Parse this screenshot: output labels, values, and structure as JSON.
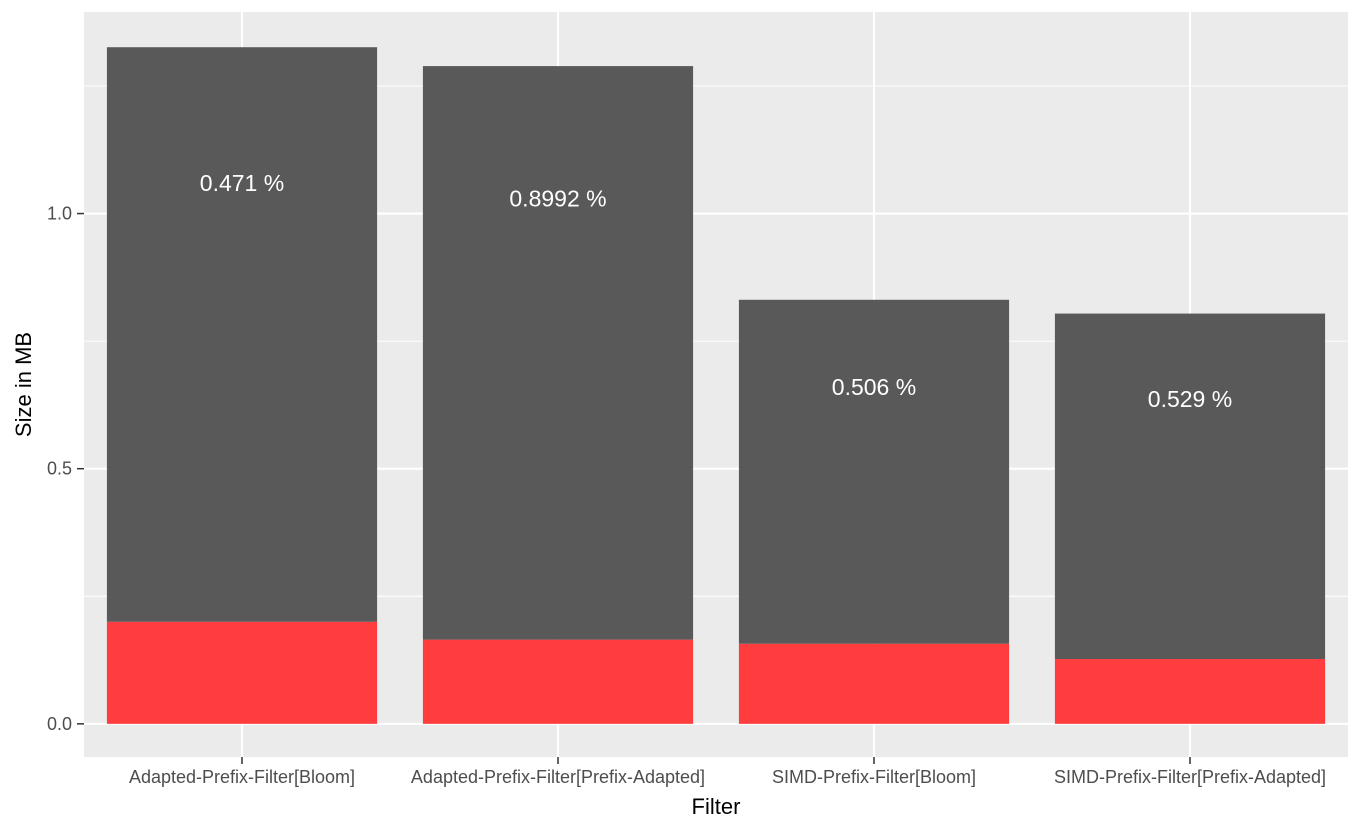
{
  "chart_data": {
    "type": "bar",
    "stacked": true,
    "title": "",
    "xlabel": "Filter",
    "ylabel": "Size in MB",
    "ylim": [
      -0.065,
      1.395
    ],
    "yticks": [
      0.0,
      0.5,
      1.0
    ],
    "ytick_labels": [
      "0.0",
      "0.5",
      "1.0"
    ],
    "grid": true,
    "legend": "none",
    "categories": [
      "Adapted-Prefix-Filter[Bloom]",
      "Adapted-Prefix-Filter[Prefix-Adapted]",
      "SIMD-Prefix-Filter[Bloom]",
      "SIMD-Prefix-Filter[Prefix-Adapted]"
    ],
    "series": [
      {
        "values": [
          0.2,
          0.165,
          0.157,
          0.127
        ],
        "color": "#ff3d3f"
      },
      {
        "values": [
          1.126,
          1.124,
          0.674,
          0.677
        ],
        "color": "#595959"
      }
    ],
    "totals": [
      1.326,
      1.289,
      0.831,
      0.804
    ],
    "bar_labels": [
      "0.471 %",
      "0.8992 %",
      "0.506 %",
      "0.529 %"
    ],
    "bar_label_y": [
      1.06,
      1.03,
      0.66,
      0.637
    ],
    "colors": {
      "panel": "#ebebeb",
      "grid": "#ffffff",
      "axis_text": "#4d4d4d"
    }
  }
}
